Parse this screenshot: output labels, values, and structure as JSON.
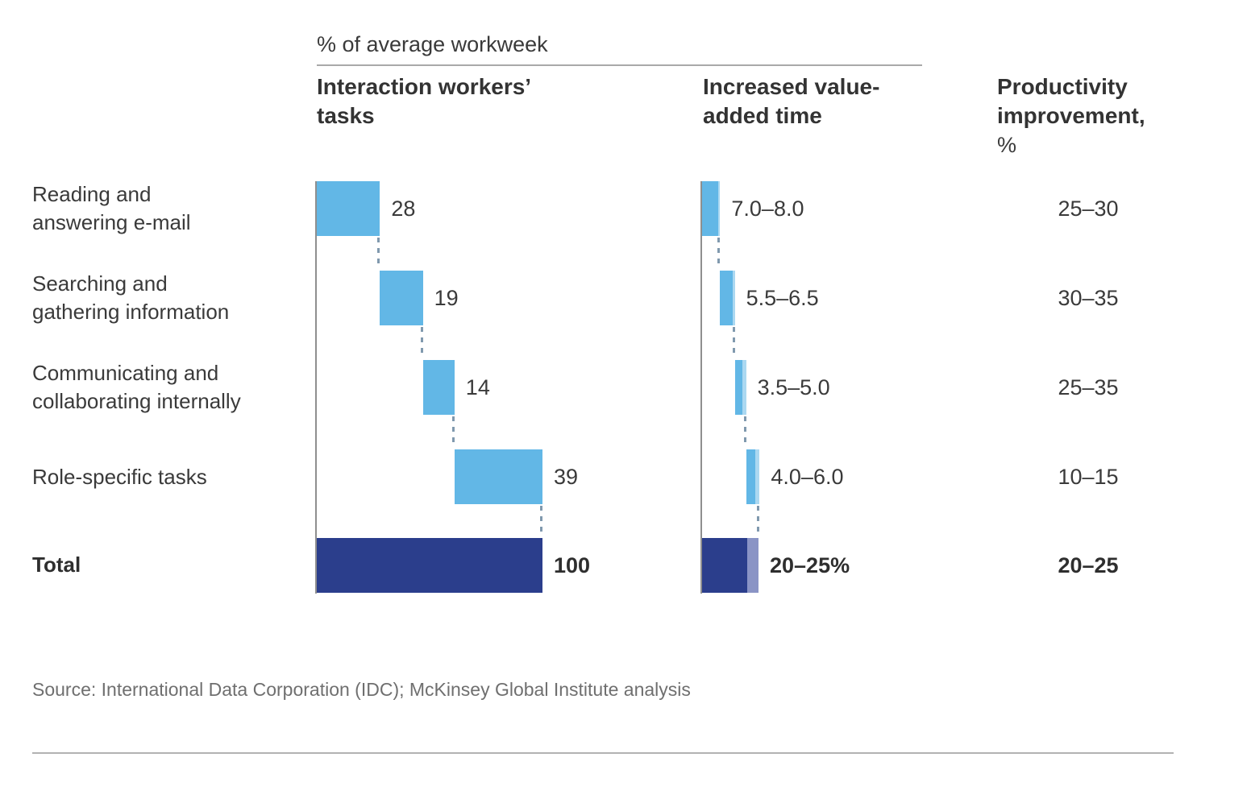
{
  "title": "% of average workweek",
  "columns": {
    "tasks": "Interaction workers’ tasks",
    "value_added": "Increased value-added time",
    "productivity": "Productivity improvement,",
    "productivity_unit": "%"
  },
  "total_row_label": "Total",
  "source": "Source: International Data Corporation (IDC); McKinsey Global Institute analysis",
  "colors": {
    "bar_blue": "#62b7e6",
    "bar_pale_blue": "#abd8f1",
    "total_navy": "#2b3e8c",
    "total_pale_purple": "#8a94c5",
    "axis_gray": "#8f8f8f",
    "connector_gray_blue": "#8099ae",
    "text_dark": "#3a3a3a",
    "source_gray": "#6f6f6f",
    "rule_gray": "#a9a9a9"
  },
  "chart_data": {
    "type": "bar",
    "subtype": "waterfall",
    "title": "% of average workweek",
    "categories": [
      [
        "Reading and",
        "answering e-mail"
      ],
      [
        "Searching and",
        "gathering information"
      ],
      [
        "Communicating and",
        "collaborating internally"
      ],
      [
        "Role-specific tasks"
      ]
    ],
    "charts": [
      {
        "name": "Interaction workers’ tasks",
        "values": [
          28,
          19,
          14,
          39
        ],
        "labels": [
          "28",
          "19",
          "14",
          "39"
        ],
        "total": 100,
        "total_label": "100"
      },
      {
        "name": "Increased value-added time",
        "ranges": [
          [
            7.0,
            8.0
          ],
          [
            5.5,
            6.5
          ],
          [
            3.5,
            5.0
          ],
          [
            4.0,
            6.0
          ]
        ],
        "labels": [
          "7.0–8.0",
          "5.5–6.5",
          "3.5–5.0",
          "4.0–6.0"
        ],
        "total_range": [
          20,
          25
        ],
        "total_label": "20–25%"
      }
    ],
    "productivity_improvement": {
      "name": "Productivity improvement, %",
      "values": [
        "25–30",
        "30–35",
        "25–35",
        "10–15"
      ],
      "total": "20–25"
    }
  }
}
